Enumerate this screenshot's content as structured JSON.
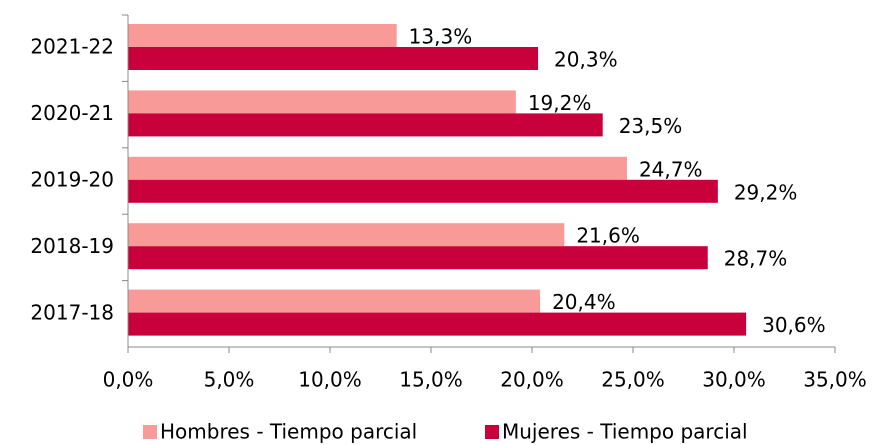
{
  "chart_data": {
    "type": "bar",
    "orientation": "horizontal",
    "categories": [
      "2021-22",
      "2020-21",
      "2019-20",
      "2018-19",
      "2017-18"
    ],
    "series": [
      {
        "name": "Hombres - Tiempo parcial",
        "color": "#f89a98",
        "values": [
          13.3,
          19.2,
          24.7,
          21.6,
          20.4
        ],
        "value_labels": [
          "13,3%",
          "19,2%",
          "24,7%",
          "21,6%",
          "20,4%"
        ]
      },
      {
        "name": "Mujeres - Tiempo parcial",
        "color": "#c8003c",
        "values": [
          20.3,
          23.5,
          29.2,
          28.7,
          30.6
        ],
        "value_labels": [
          "20,3%",
          "23,5%",
          "29,2%",
          "28,7%",
          "30,6%"
        ]
      }
    ],
    "xlim": [
      0,
      35
    ],
    "xticks": [
      {
        "value": 0,
        "label": "0,0%"
      },
      {
        "value": 5,
        "label": "5,0%"
      },
      {
        "value": 10,
        "label": "10,0%"
      },
      {
        "value": 15,
        "label": "15,0%"
      },
      {
        "value": 20,
        "label": "20,0%"
      },
      {
        "value": 25,
        "label": "25,0%"
      },
      {
        "value": 30,
        "label": "30,0%"
      },
      {
        "value": 35,
        "label": "35,0%"
      }
    ],
    "legend": "bottom"
  }
}
